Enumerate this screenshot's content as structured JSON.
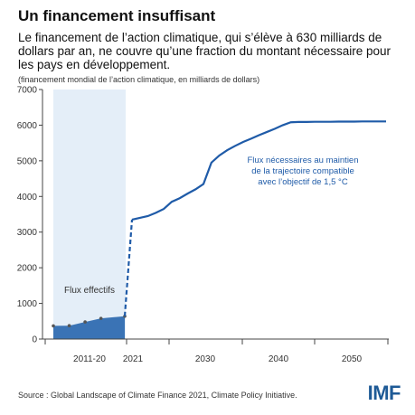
{
  "header": {
    "title": "Un financement insuffisant",
    "subtitle": "Le financement de l’action climatique, qui s’élève à 630 milliards de dollars par an, ne couvre qu’une fraction du montant nécessaire pour les pays en développement.",
    "units": "(financement mondial de l’action climatique, en milliards de dollars)"
  },
  "footer": {
    "source": "Source : Global Landscape of Climate Finance 2021, Climate Policy Initiative.",
    "logo": "IMF"
  },
  "chart_data": {
    "type": "area",
    "ylim": [
      0,
      7000
    ],
    "yticks": [
      "0",
      "1000",
      "2000",
      "3000",
      "4000",
      "5000",
      "6000",
      "7000"
    ],
    "xticks": [
      "2011-20",
      "2021",
      "2030",
      "2040",
      "2050"
    ],
    "grid": false,
    "colors": {
      "needed_line": "#1f5ba8",
      "actual_fill": "#3a73b5",
      "actual_period_band": "#e4eef8",
      "actual_points": "#555555"
    },
    "series": [
      {
        "label": "Flux effectifs",
        "style": "filled area with markers",
        "x": [
          "2011",
          "2013",
          "2015",
          "2017",
          "2020"
        ],
        "values": [
          370,
          375,
          480,
          580,
          640
        ]
      },
      {
        "label": "",
        "style": "dashed line",
        "x": [
          "2020",
          "2021"
        ],
        "values": [
          640,
          3350
        ]
      },
      {
        "label": "Flux nécessaires au maintien de la trajectoire compatible avec l’objectif de 1,5 °C",
        "style": "solid line",
        "x": [
          2021,
          2022,
          2023,
          2024,
          2025,
          2026,
          2027,
          2028,
          2029,
          2030,
          2031,
          2032,
          2033,
          2034,
          2035,
          2036,
          2037,
          2038,
          2039,
          2040,
          2041,
          2042,
          2043,
          2044,
          2045,
          2046,
          2047,
          2048,
          2049,
          2050,
          2051,
          2052,
          2053
        ],
        "values": [
          3350,
          3400,
          3450,
          3540,
          3650,
          3850,
          3950,
          4080,
          4200,
          4350,
          4950,
          5150,
          5300,
          5420,
          5530,
          5620,
          5720,
          5810,
          5900,
          6000,
          6080,
          6090,
          6090,
          6095,
          6095,
          6095,
          6100,
          6100,
          6100,
          6105,
          6105,
          6105,
          6105
        ]
      }
    ],
    "annotations": {
      "actual_label": "Flux effectifs",
      "needed_label_lines": [
        "Flux nécessaires au maintien",
        "de la trajectoire compatible",
        "avec l’objectif de 1,5 °C"
      ]
    }
  }
}
